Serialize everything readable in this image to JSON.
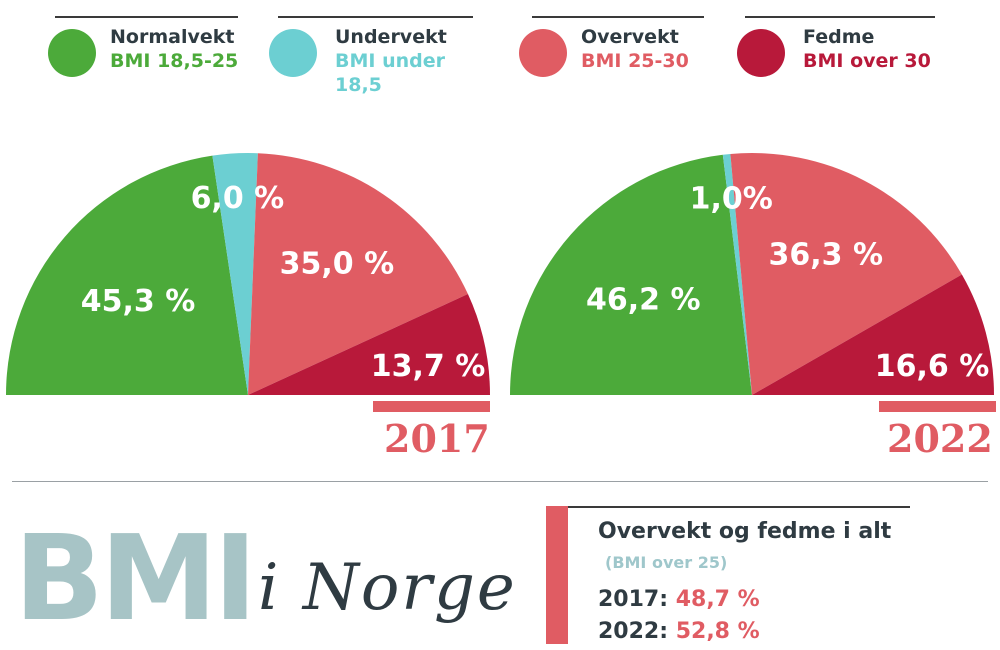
{
  "legend": [
    {
      "name": "Normalvekt",
      "range": "BMI 18,5-25",
      "color": "#4caa3a"
    },
    {
      "name": "Undervekt",
      "range_lines": [
        "BMI under",
        "18,5"
      ],
      "color": "#6ccfd2"
    },
    {
      "name": "Overvekt",
      "range": "BMI 25-30",
      "color": "#e05c63"
    },
    {
      "name": "Fedme",
      "range": "BMI over 30",
      "color": "#b8193a"
    }
  ],
  "chart_data": [
    {
      "type": "pie",
      "subtype": "half-pie",
      "year": "2017",
      "categories": [
        "Normalvekt",
        "Undervekt",
        "Overvekt",
        "Fedme"
      ],
      "values": [
        45.3,
        6.0,
        35.0,
        13.7
      ],
      "labels": [
        "45,3 %",
        "6,0 %",
        "35,0 %",
        "13,7 %"
      ],
      "colors": [
        "#4caa3a",
        "#6ccfd2",
        "#e05c63",
        "#b8193a"
      ]
    },
    {
      "type": "pie",
      "subtype": "half-pie",
      "year": "2022",
      "categories": [
        "Normalvekt",
        "Undervekt",
        "Overvekt",
        "Fedme"
      ],
      "values": [
        46.2,
        1.0,
        36.3,
        16.6
      ],
      "labels": [
        "46,2 %",
        "1,0%",
        "36,3 %",
        "16,6 %"
      ],
      "colors": [
        "#4caa3a",
        "#6ccfd2",
        "#e05c63",
        "#b8193a"
      ]
    }
  ],
  "brand": {
    "title": "BMI",
    "subtitle": "i Norge"
  },
  "summary": {
    "title": "Overvekt og fedme i alt",
    "subtitle": "(BMI over 25)",
    "rows": [
      {
        "year": "2017:",
        "value": "48,7 %"
      },
      {
        "year": "2022:",
        "value": "52,8 %"
      }
    ]
  },
  "accent_color": "#e05c63"
}
